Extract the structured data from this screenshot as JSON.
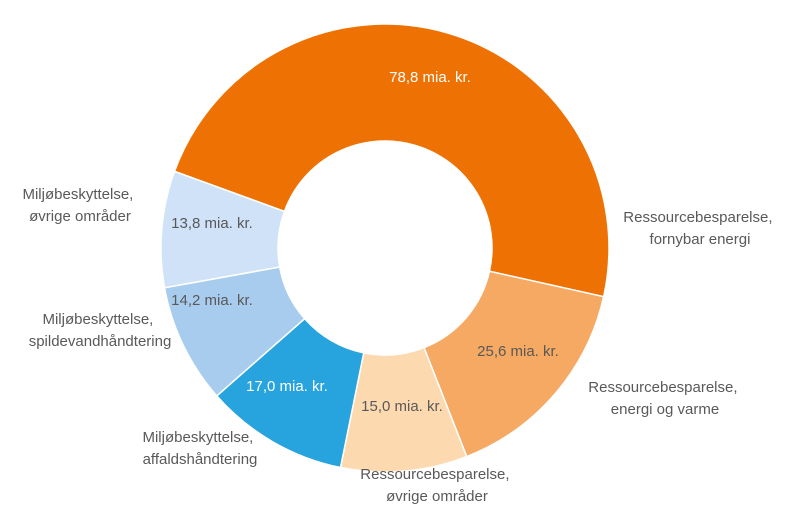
{
  "chart_data": {
    "type": "donut",
    "categories": [
      "Ressourcebesparelse, fornybar energi",
      "Ressourcebesparelse, energi og varme",
      "Ressourcebesparelse, øvrige områder",
      "Miljøbeskyttelse, affaldshåndtering",
      "Miljøbeskyttelse, spildevandhåndtering",
      "Miljøbeskyttelse, øvrige områder"
    ],
    "values": [
      78.8,
      25.6,
      15.0,
      17.0,
      14.2,
      13.8
    ],
    "value_labels": [
      "78,8 mia. kr.",
      "25,6 mia. kr.",
      "15,0 mia. kr.",
      "17,0 mia. kr.",
      "14,2 mia. kr.",
      "13,8 mia. kr."
    ],
    "colors": [
      "#ee7203",
      "#f5a962",
      "#fdd9b0",
      "#27a3dd",
      "#a8ccee",
      "#cfe2f7"
    ]
  }
}
